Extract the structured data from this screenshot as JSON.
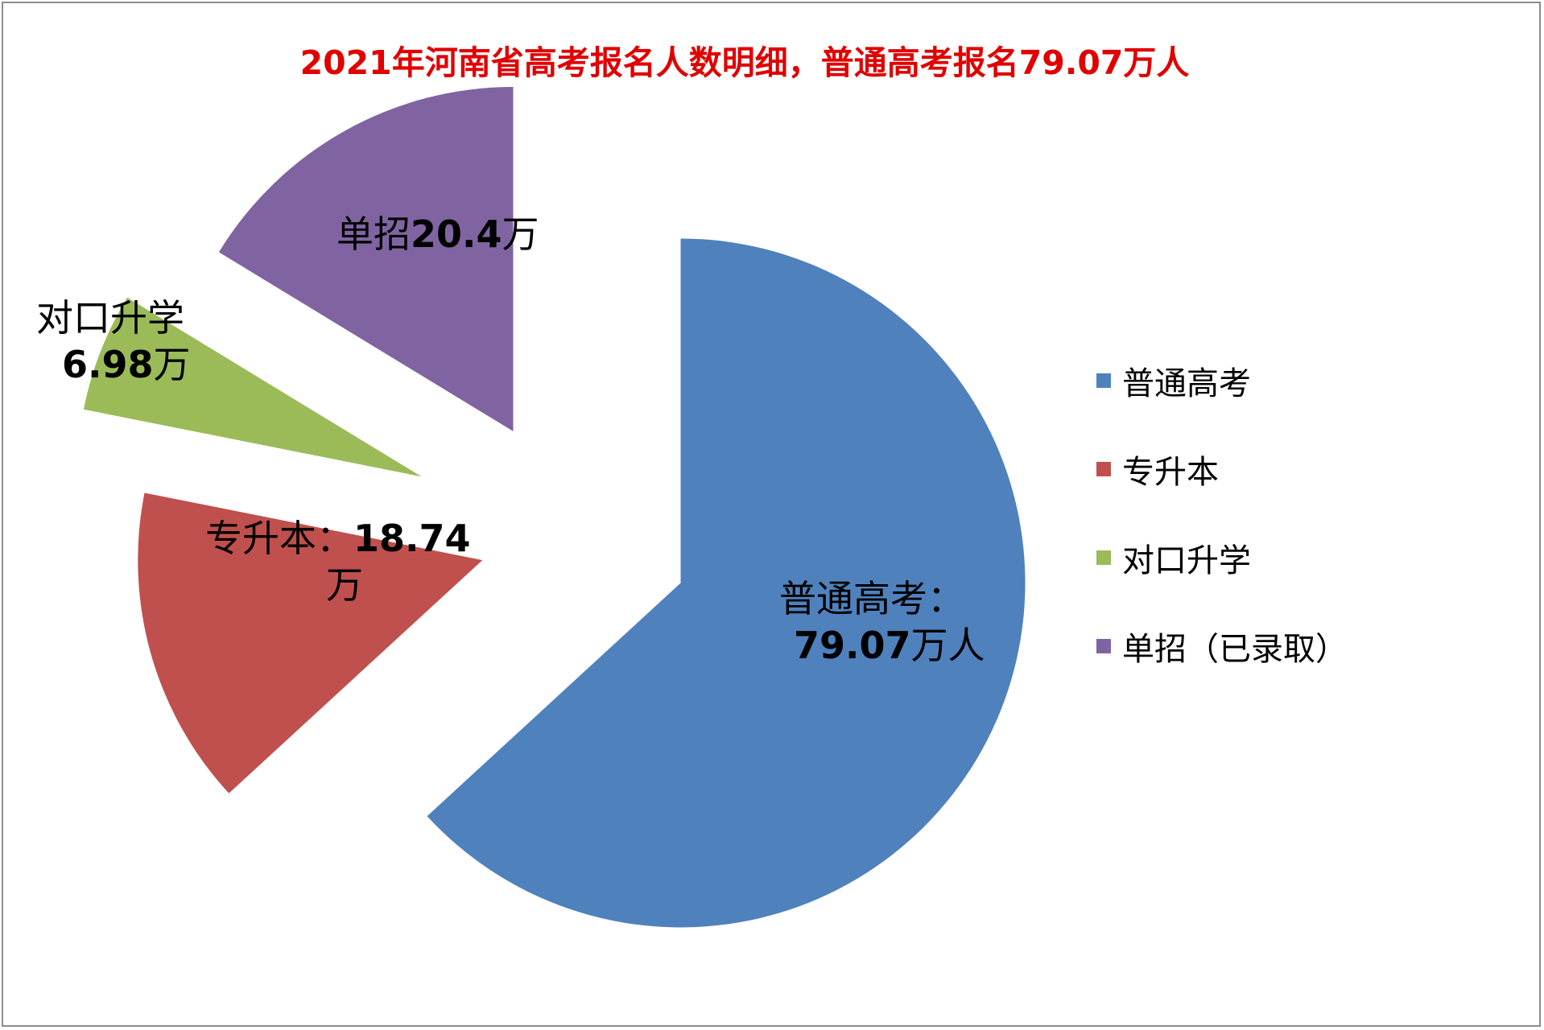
{
  "chart_data": {
    "type": "pie",
    "title": "2021年河南省高考报名人数明细，普通高考报名79.07万人",
    "slices": [
      {
        "name": "普通高考",
        "value": 79.07,
        "color": "#4f81bd",
        "label_line1": "普通高考：",
        "label_line2_num": "79.07",
        "label_line2_unit": "万人"
      },
      {
        "name": "专升本",
        "value": 18.74,
        "color": "#c0504d",
        "label_line1_text": "专升本：",
        "label_line1_num": "18.74",
        "label_line2": "万"
      },
      {
        "name": "对口升学",
        "value": 6.98,
        "color": "#9bbb59",
        "label_line1": "对口升学",
        "label_line2_num": "6.98",
        "label_line2_unit": "万"
      },
      {
        "name": "单招（已录取）",
        "value": 20.4,
        "color": "#8064a2",
        "label_text": "单招",
        "label_num": "20.4",
        "label_unit": "万"
      }
    ],
    "legend_position": "right",
    "exploded": true
  }
}
